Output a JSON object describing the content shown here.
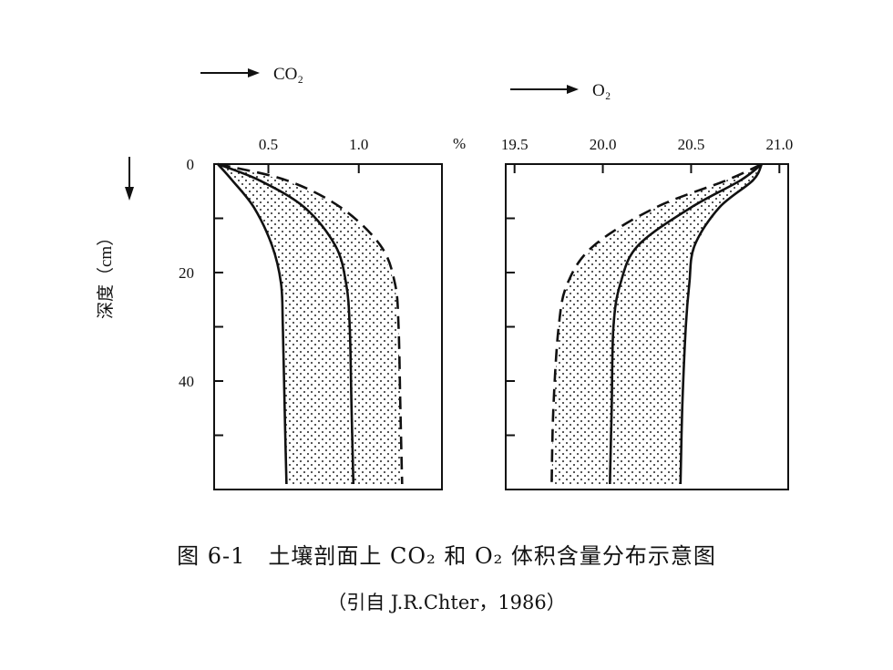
{
  "chart_data": [
    {
      "type": "line",
      "legend": "CO₂",
      "top_axis_ticks": [
        "0.5",
        "1.0"
      ],
      "unit_label": "%",
      "xlim": [
        0.2,
        1.46
      ],
      "ylim": [
        0,
        60
      ],
      "y_ticks": [
        "0",
        "20",
        "40"
      ],
      "ylabel": "深度（cm）",
      "band_fill": "stippled",
      "series": [
        {
          "style": "solid",
          "x": [
            0.22,
            0.3,
            0.42,
            0.52,
            0.57,
            0.58,
            0.59,
            0.6
          ],
          "y": [
            0,
            3,
            8,
            15,
            22,
            30,
            45,
            59
          ]
        },
        {
          "style": "solid",
          "x": [
            0.22,
            0.45,
            0.7,
            0.87,
            0.93,
            0.95,
            0.96,
            0.97
          ],
          "y": [
            0,
            3,
            8,
            15,
            22,
            30,
            45,
            59
          ]
        },
        {
          "style": "dashed",
          "x": [
            0.22,
            0.6,
            0.9,
            1.12,
            1.2,
            1.22,
            1.23,
            1.24
          ],
          "y": [
            0,
            3,
            8,
            15,
            22,
            30,
            45,
            59
          ]
        }
      ]
    },
    {
      "type": "line",
      "legend": "O₂",
      "top_axis_ticks": [
        "19.5",
        "20.0",
        "20.5",
        "21.0"
      ],
      "xlim": [
        19.45,
        21.05
      ],
      "ylim": [
        0,
        60
      ],
      "band_fill": "stippled",
      "series": [
        {
          "style": "dashed",
          "x": [
            20.9,
            20.7,
            20.3,
            19.95,
            19.8,
            19.75,
            19.72,
            19.71
          ],
          "y": [
            0,
            3,
            8,
            15,
            22,
            30,
            45,
            59
          ]
        },
        {
          "style": "solid",
          "x": [
            20.9,
            20.78,
            20.5,
            20.2,
            20.1,
            20.06,
            20.05,
            20.04
          ],
          "y": [
            0,
            3,
            8,
            15,
            22,
            30,
            45,
            59
          ]
        },
        {
          "style": "solid",
          "x": [
            20.9,
            20.85,
            20.66,
            20.52,
            20.49,
            20.47,
            20.45,
            20.44
          ],
          "y": [
            0,
            3,
            8,
            15,
            22,
            30,
            45,
            59
          ]
        }
      ]
    }
  ],
  "caption": {
    "title": "图 6-1　土壤剖面上 CO₂ 和 O₂ 体积含量分布示意图",
    "source": "（引自 J.R.Chter，1986）"
  }
}
